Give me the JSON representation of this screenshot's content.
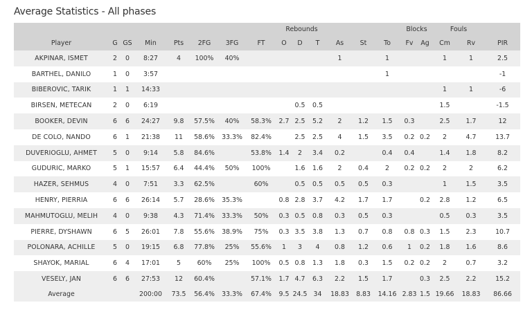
{
  "title": "Average Statistics - All phases",
  "group_headers": {
    "rebounds": "Rebounds",
    "blocks": "Blocks",
    "fouls": "Fouls"
  },
  "columns": [
    "Player",
    "G",
    "GS",
    "Min",
    "Pts",
    "2FG",
    "3FG",
    "FT",
    "O",
    "D",
    "T",
    "As",
    "St",
    "To",
    "Fv",
    "Ag",
    "Cm",
    "Rv",
    "PIR"
  ],
  "rows": [
    [
      "AKPINAR, ISMET",
      "2",
      "0",
      "8:27",
      "4",
      "100%",
      "40%",
      "",
      "",
      "",
      "",
      "1",
      "",
      "1",
      "",
      "",
      "1",
      "1",
      "2.5"
    ],
    [
      "BARTHEL, DANILO",
      "1",
      "0",
      "3:57",
      "",
      "",
      "",
      "",
      "",
      "",
      "",
      "",
      "",
      "1",
      "",
      "",
      "",
      "",
      "-1"
    ],
    [
      "BIBEROVIC, TARIK",
      "1",
      "1",
      "14:33",
      "",
      "",
      "",
      "",
      "",
      "",
      "",
      "",
      "",
      "",
      "",
      "",
      "1",
      "1",
      "-6"
    ],
    [
      "BIRSEN, METECAN",
      "2",
      "0",
      "6:19",
      "",
      "",
      "",
      "",
      "",
      "0.5",
      "0.5",
      "",
      "",
      "",
      "",
      "",
      "1.5",
      "",
      "-1.5"
    ],
    [
      "BOOKER, DEVIN",
      "6",
      "6",
      "24:27",
      "9.8",
      "57.5%",
      "40%",
      "58.3%",
      "2.7",
      "2.5",
      "5.2",
      "2",
      "1.2",
      "1.5",
      "0.3",
      "",
      "2.5",
      "1.7",
      "12"
    ],
    [
      "DE COLO, NANDO",
      "6",
      "1",
      "21:38",
      "11",
      "58.6%",
      "33.3%",
      "82.4%",
      "",
      "2.5",
      "2.5",
      "4",
      "1.5",
      "3.5",
      "0.2",
      "0.2",
      "2",
      "4.7",
      "13.7"
    ],
    [
      "DUVERIOGLU, AHMET",
      "5",
      "0",
      "9:14",
      "5.8",
      "84.6%",
      "",
      "53.8%",
      "1.4",
      "2",
      "3.4",
      "0.2",
      "",
      "0.4",
      "0.4",
      "",
      "1.4",
      "1.8",
      "8.2"
    ],
    [
      "GUDURIC, MARKO",
      "5",
      "1",
      "15:57",
      "6.4",
      "44.4%",
      "50%",
      "100%",
      "",
      "1.6",
      "1.6",
      "2",
      "0.4",
      "2",
      "0.2",
      "0.2",
      "2",
      "2",
      "6.2"
    ],
    [
      "HAZER, SEHMUS",
      "4",
      "0",
      "7:51",
      "3.3",
      "62.5%",
      "",
      "60%",
      "",
      "0.5",
      "0.5",
      "0.5",
      "0.5",
      "0.3",
      "",
      "",
      "1",
      "1.5",
      "3.5"
    ],
    [
      "HENRY, PIERRIA",
      "6",
      "6",
      "26:14",
      "5.7",
      "28.6%",
      "35.3%",
      "",
      "0.8",
      "2.8",
      "3.7",
      "4.2",
      "1.7",
      "1.7",
      "",
      "0.2",
      "2.8",
      "1.2",
      "6.5"
    ],
    [
      "MAHMUTOGLU, MELIH",
      "4",
      "0",
      "9:38",
      "4.3",
      "71.4%",
      "33.3%",
      "50%",
      "0.3",
      "0.5",
      "0.8",
      "0.3",
      "0.5",
      "0.3",
      "",
      "",
      "0.5",
      "0.3",
      "3.5"
    ],
    [
      "PIERRE, DYSHAWN",
      "6",
      "5",
      "26:01",
      "7.8",
      "55.6%",
      "38.9%",
      "75%",
      "0.3",
      "3.5",
      "3.8",
      "1.3",
      "0.7",
      "0.8",
      "0.8",
      "0.3",
      "1.5",
      "2.3",
      "10.7"
    ],
    [
      "POLONARA, ACHILLE",
      "5",
      "0",
      "19:15",
      "6.8",
      "77.8%",
      "25%",
      "55.6%",
      "1",
      "3",
      "4",
      "0.8",
      "1.2",
      "0.6",
      "1",
      "0.2",
      "1.8",
      "1.6",
      "8.6"
    ],
    [
      "SHAYOK, MARIAL",
      "6",
      "4",
      "17:01",
      "5",
      "60%",
      "25%",
      "100%",
      "0.5",
      "0.8",
      "1.3",
      "1.8",
      "0.3",
      "1.5",
      "0.2",
      "0.2",
      "2",
      "0.7",
      "3.2"
    ],
    [
      "VESELY, JAN",
      "6",
      "6",
      "27:53",
      "12",
      "60.4%",
      "",
      "57.1%",
      "1.7",
      "4.7",
      "6.3",
      "2.2",
      "1.5",
      "1.7",
      "",
      "0.3",
      "2.5",
      "2.2",
      "15.2"
    ]
  ],
  "average": [
    "Average",
    "",
    "",
    "200:00",
    "73.5",
    "56.4%",
    "33.3%",
    "67.4%",
    "9.5",
    "24.5",
    "34",
    "18.83",
    "8.83",
    "14.16",
    "2.83",
    "1.5",
    "19.66",
    "18.83",
    "86.66"
  ]
}
